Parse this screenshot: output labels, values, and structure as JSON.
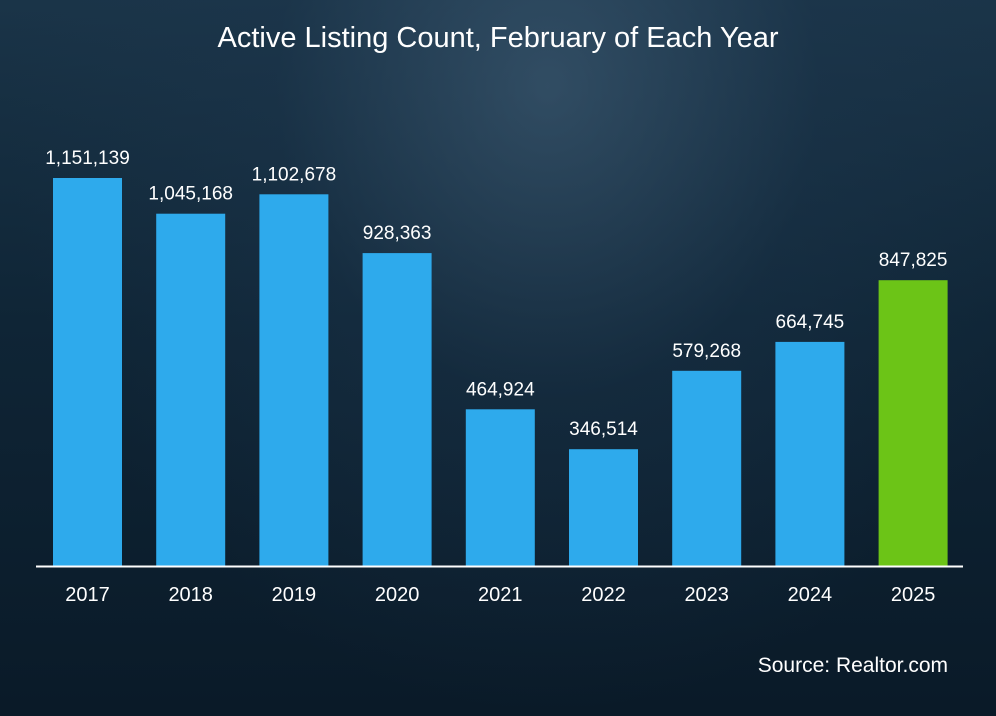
{
  "chart_data": {
    "type": "bar",
    "title": "Active Listing Count, February of Each Year",
    "categories": [
      "2017",
      "2018",
      "2019",
      "2020",
      "2021",
      "2022",
      "2023",
      "2024",
      "2025"
    ],
    "values": [
      1151139,
      1045168,
      1102678,
      928363,
      464924,
      346514,
      579268,
      664745,
      847825
    ],
    "value_labels": [
      "1,151,139",
      "1,045,168",
      "1,102,678",
      "928,363",
      "464,924",
      "346,514",
      "579,268",
      "664,745",
      "847,825"
    ],
    "xlabel": "",
    "ylabel": "",
    "ylim": [
      0,
      1151139
    ],
    "grid": false,
    "legend": "none",
    "colors": {
      "default_bar": "#2eaaec",
      "highlight_bar": "#6cc417",
      "highlight_category": "2025",
      "axis": "#ffffff",
      "text": "#ffffff"
    }
  },
  "source": "Source: Realtor.com"
}
